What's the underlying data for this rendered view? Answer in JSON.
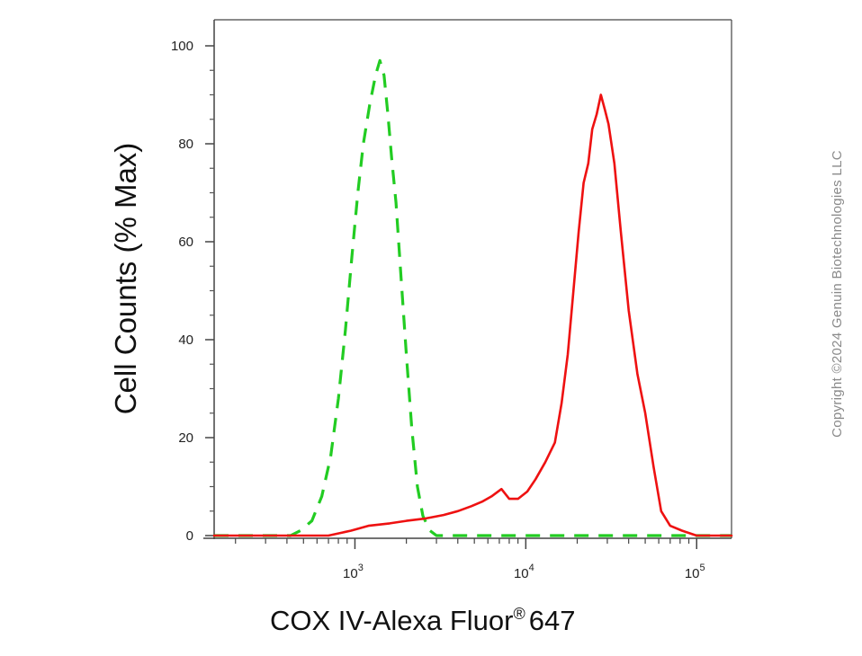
{
  "chart_data": {
    "type": "line",
    "xlabel": "COX IV-Alexa Fluor",
    "xlabel_mark": "®",
    "xlabel_suffix": "647",
    "ylabel": "Cell Counts (% Max)",
    "x_scale": "log",
    "xlim": [
      150,
      160000
    ],
    "ylim": [
      0,
      100
    ],
    "y_ticks": [
      0,
      20,
      40,
      60,
      80,
      100
    ],
    "y_tick_labels": [
      "0",
      "20",
      "40",
      "60",
      "80",
      "100"
    ],
    "x_tick_values": [
      1000,
      10000,
      100000
    ],
    "x_tick_base": "10",
    "x_tick_exponents": [
      "3",
      "4",
      "5"
    ],
    "grid": false,
    "legend": "none",
    "series": [
      {
        "color": "#22cc22",
        "dash": true,
        "points": [
          [
            150,
            0
          ],
          [
            420,
            0
          ],
          [
            480,
            1
          ],
          [
            560,
            3
          ],
          [
            640,
            8
          ],
          [
            720,
            16
          ],
          [
            800,
            28
          ],
          [
            880,
            42
          ],
          [
            960,
            57
          ],
          [
            1040,
            70
          ],
          [
            1120,
            80
          ],
          [
            1220,
            88
          ],
          [
            1320,
            94
          ],
          [
            1400,
            97
          ],
          [
            1480,
            94
          ],
          [
            1560,
            86
          ],
          [
            1640,
            77
          ],
          [
            1740,
            68
          ],
          [
            1860,
            53
          ],
          [
            2000,
            37
          ],
          [
            2150,
            22
          ],
          [
            2320,
            10
          ],
          [
            2500,
            4
          ],
          [
            2750,
            1
          ],
          [
            3000,
            0
          ],
          [
            160000,
            0
          ]
        ]
      },
      {
        "color": "#ee1111",
        "dash": false,
        "points": [
          [
            150,
            0
          ],
          [
            700,
            0
          ],
          [
            950,
            1
          ],
          [
            1200,
            2
          ],
          [
            1600,
            2.5
          ],
          [
            2000,
            3
          ],
          [
            2600,
            3.5
          ],
          [
            3300,
            4.2
          ],
          [
            4000,
            5
          ],
          [
            4800,
            6
          ],
          [
            5600,
            7
          ],
          [
            6300,
            8
          ],
          [
            7200,
            9.5
          ],
          [
            8000,
            7.5
          ],
          [
            9000,
            7.5
          ],
          [
            10200,
            9
          ],
          [
            11400,
            11.5
          ],
          [
            13000,
            15
          ],
          [
            14800,
            19
          ],
          [
            16200,
            27
          ],
          [
            17600,
            37
          ],
          [
            19000,
            50
          ],
          [
            20400,
            62
          ],
          [
            21800,
            72
          ],
          [
            23200,
            76
          ],
          [
            24500,
            83
          ],
          [
            26000,
            86
          ],
          [
            27500,
            90
          ],
          [
            29000,
            87
          ],
          [
            30500,
            84
          ],
          [
            33000,
            76
          ],
          [
            36000,
            62
          ],
          [
            40000,
            46
          ],
          [
            45000,
            33
          ],
          [
            50000,
            25
          ],
          [
            56000,
            14
          ],
          [
            62000,
            5
          ],
          [
            70000,
            2
          ],
          [
            82000,
            1
          ],
          [
            100000,
            0
          ],
          [
            160000,
            0
          ]
        ]
      }
    ]
  },
  "copyright": "Copyright ©2024 Genuin Biotechnologies LLC"
}
